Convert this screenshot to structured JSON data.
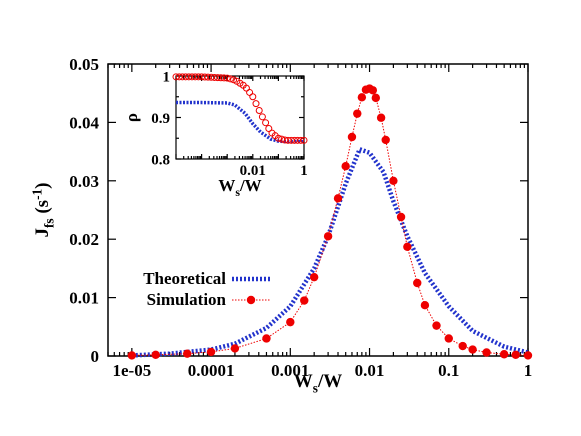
{
  "chart_data": [
    {
      "type": "line",
      "xscale": "log",
      "xlim": [
        5e-06,
        1
      ],
      "ylim": [
        0,
        0.05
      ],
      "xlabel": {
        "main": "W",
        "sub": "s",
        "rest": "/W"
      },
      "ylabel": {
        "main": "J",
        "sub": "fs",
        "rest": " (s",
        "sup": "-1",
        "end": ")"
      },
      "xticks": [
        {
          "value": 1e-05,
          "label": "1e-05"
        },
        {
          "value": 0.0001,
          "label": "0.0001"
        },
        {
          "value": 0.001,
          "label": "0.001"
        },
        {
          "value": 0.01,
          "label": "0.01"
        },
        {
          "value": 0.1,
          "label": "0.1"
        },
        {
          "value": 1,
          "label": "1"
        }
      ],
      "yticks": [
        {
          "value": 0,
          "label": "0"
        },
        {
          "value": 0.01,
          "label": "0.01"
        },
        {
          "value": 0.02,
          "label": "0.02"
        },
        {
          "value": 0.03,
          "label": "0.03"
        },
        {
          "value": 0.04,
          "label": "0.04"
        },
        {
          "value": 0.05,
          "label": "0.05"
        }
      ],
      "legend_position": "center-left",
      "series": [
        {
          "name": "Theoretical",
          "color": "#2233cc",
          "style": "dotted-thick",
          "x": [
            1e-05,
            3e-05,
            0.0001,
            0.0002,
            0.0005,
            0.001,
            0.002,
            0.003,
            0.005,
            0.0075,
            0.01,
            0.015,
            0.02,
            0.03,
            0.05,
            0.1,
            0.2,
            0.5,
            1
          ],
          "y": [
            0.0001,
            0.0004,
            0.0011,
            0.0021,
            0.0048,
            0.0085,
            0.015,
            0.0205,
            0.0295,
            0.0354,
            0.0348,
            0.0315,
            0.0265,
            0.0205,
            0.0142,
            0.0085,
            0.0043,
            0.0016,
            0.0006
          ]
        },
        {
          "name": "Simulation",
          "color": "#ee0000",
          "style": "dotted-markers",
          "x": [
            1e-05,
            2e-05,
            5e-05,
            0.0001,
            0.0002,
            0.0005,
            0.001,
            0.0015,
            0.002,
            0.003,
            0.004,
            0.005,
            0.006,
            0.007,
            0.008,
            0.009,
            0.01,
            0.011,
            0.012,
            0.014,
            0.016,
            0.02,
            0.025,
            0.03,
            0.04,
            0.05,
            0.07,
            0.1,
            0.15,
            0.2,
            0.3,
            0.5,
            0.7,
            1
          ],
          "y": [
            0.0001,
            0.0002,
            0.0004,
            0.0007,
            0.0013,
            0.003,
            0.0058,
            0.0095,
            0.0135,
            0.0205,
            0.027,
            0.0325,
            0.0375,
            0.0415,
            0.0443,
            0.0456,
            0.0458,
            0.0455,
            0.0442,
            0.0408,
            0.037,
            0.03,
            0.0238,
            0.0187,
            0.0125,
            0.0087,
            0.0052,
            0.003,
            0.0017,
            0.0011,
            0.0006,
            0.0003,
            0.0002,
            0.0001
          ]
        }
      ]
    },
    {
      "type": "line",
      "xscale": "log",
      "xlim": [
        1e-05,
        1
      ],
      "ylim": [
        0.8,
        1
      ],
      "xlabel": {
        "main": "W",
        "sub": "s",
        "rest": "/W"
      },
      "ylabel": {
        "main": "ρ"
      },
      "xticks": [
        {
          "value": 0.01,
          "label": "0.01"
        },
        {
          "value": 1,
          "label": "1"
        }
      ],
      "yticks": [
        {
          "value": 0.8,
          "label": "0.8"
        },
        {
          "value": 0.9,
          "label": "0.9"
        },
        {
          "value": 1,
          "label": "1"
        }
      ],
      "series": [
        {
          "color": "#2233cc",
          "style": "dotted-thick",
          "x": [
            1e-05,
            0.0001,
            0.001,
            0.002,
            0.005,
            0.01,
            0.02,
            0.05,
            0.1,
            0.2,
            0.5,
            1
          ],
          "y": [
            0.936,
            0.936,
            0.935,
            0.93,
            0.91,
            0.885,
            0.865,
            0.848,
            0.843,
            0.842,
            0.842,
            0.842
          ]
        },
        {
          "color": "#ee0000",
          "style": "open-markers",
          "x": [
            1e-05,
            0.0001,
            0.001,
            0.002,
            0.005,
            0.01,
            0.02,
            0.05,
            0.1,
            0.2,
            0.5,
            1
          ],
          "y": [
            0.998,
            0.998,
            0.995,
            0.99,
            0.975,
            0.95,
            0.91,
            0.865,
            0.85,
            0.845,
            0.845,
            0.845
          ]
        }
      ]
    }
  ]
}
